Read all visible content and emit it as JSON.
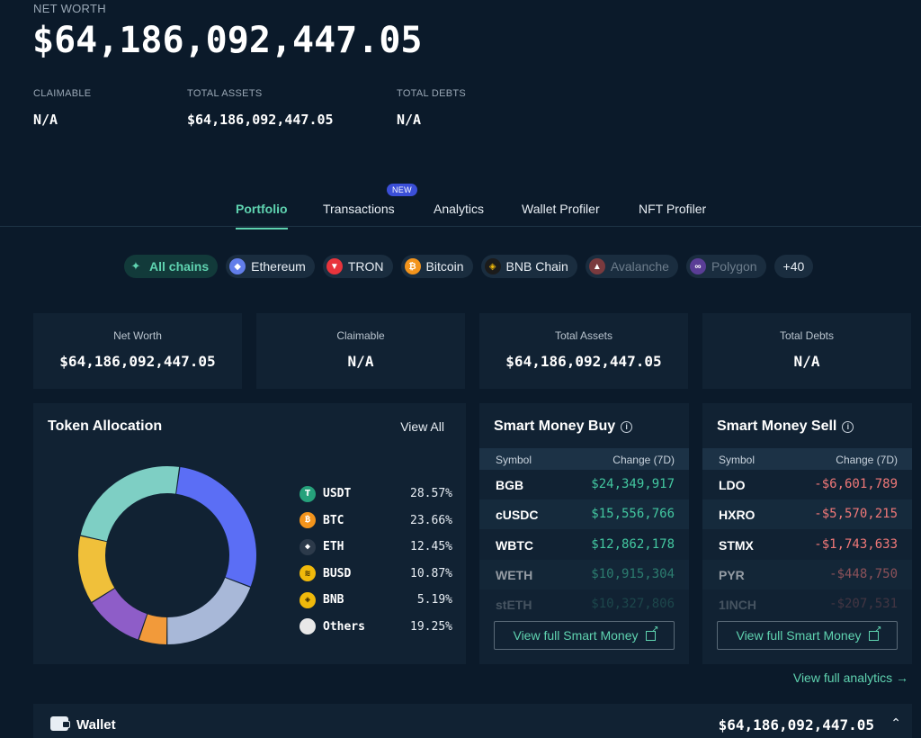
{
  "header": {
    "net_worth_label": "NET WORTH",
    "net_worth_value": "$64,186,092,447.05",
    "stats": [
      {
        "label": "CLAIMABLE",
        "value": "N/A"
      },
      {
        "label": "TOTAL ASSETS",
        "value": "$64,186,092,447.05"
      },
      {
        "label": "TOTAL DEBTS",
        "value": "N/A"
      }
    ]
  },
  "tabs": [
    {
      "label": "Portfolio",
      "active": true
    },
    {
      "label": "Transactions",
      "badge": "NEW"
    },
    {
      "label": "Analytics"
    },
    {
      "label": "Wallet Profiler"
    },
    {
      "label": "NFT Profiler"
    }
  ],
  "chains": [
    {
      "label": "All chains",
      "icon": "all-chains-icon",
      "color": "#5fd3b0"
    },
    {
      "label": "Ethereum",
      "icon": "ethereum-icon",
      "color": "#627eea"
    },
    {
      "label": "TRON",
      "icon": "tron-icon",
      "color": "#e8343c"
    },
    {
      "label": "Bitcoin",
      "icon": "bitcoin-icon",
      "color": "#f3941c"
    },
    {
      "label": "BNB Chain",
      "icon": "bnb-icon",
      "color": "#f0b90b"
    },
    {
      "label": "Avalanche",
      "icon": "avalanche-icon",
      "color": "#e84142"
    },
    {
      "label": "Polygon",
      "icon": "polygon-icon",
      "color": "#8247e5"
    },
    {
      "label": "+40"
    }
  ],
  "summary": [
    {
      "label": "Net Worth",
      "value": "$64,186,092,447.05"
    },
    {
      "label": "Claimable",
      "value": "N/A"
    },
    {
      "label": "Total Assets",
      "value": "$64,186,092,447.05"
    },
    {
      "label": "Total Debts",
      "value": "N/A"
    }
  ],
  "allocation": {
    "title": "Token Allocation",
    "view_all": "View All",
    "tokens": [
      {
        "symbol": "USDT",
        "percent": "28.57%",
        "share": 28.57,
        "color": "#5b6ef5",
        "icon": "tether-icon",
        "icon_color": "#26a17b"
      },
      {
        "symbol": "BTC",
        "percent": "23.66%",
        "share": 23.66,
        "color": "#7ecfc4",
        "icon": "bitcoin-icon",
        "icon_color": "#f3941c"
      },
      {
        "symbol": "ETH",
        "percent": "12.45%",
        "share": 12.45,
        "color": "#f0c03a",
        "icon": "ethereum-icon",
        "icon_color": "#3c4a5a"
      },
      {
        "symbol": "BUSD",
        "percent": "10.87%",
        "share": 10.87,
        "color": "#8e5dc8",
        "icon": "busd-icon",
        "icon_color": "#f0b90b"
      },
      {
        "symbol": "BNB",
        "percent": "5.19%",
        "share": 5.19,
        "color": "#f29a3a",
        "icon": "bnb-icon",
        "icon_color": "#f0b90b"
      },
      {
        "symbol": "Others",
        "percent": "19.25%",
        "share": 19.25,
        "color": "#a8b8d8",
        "icon": "others-icon",
        "icon_color": "#e8e8e8"
      }
    ]
  },
  "smart_buy": {
    "title": "Smart Money Buy",
    "col_symbol": "Symbol",
    "col_change": "Change (7D)",
    "rows": [
      {
        "symbol": "BGB",
        "change": "$24,349,917"
      },
      {
        "symbol": "cUSDC",
        "change": "$15,556,766"
      },
      {
        "symbol": "WBTC",
        "change": "$12,862,178"
      },
      {
        "symbol": "WETH",
        "change": "$10,915,304"
      },
      {
        "symbol": "stETH",
        "change": "$10,327,806"
      }
    ],
    "button": "View full Smart Money"
  },
  "smart_sell": {
    "title": "Smart Money Sell",
    "col_symbol": "Symbol",
    "col_change": "Change (7D)",
    "rows": [
      {
        "symbol": "LDO",
        "change": "-$6,601,789"
      },
      {
        "symbol": "HXRO",
        "change": "-$5,570,215"
      },
      {
        "symbol": "STMX",
        "change": "-$1,743,633"
      },
      {
        "symbol": "PYR",
        "change": "-$448,750"
      },
      {
        "symbol": "1INCH",
        "change": "-$207,531"
      }
    ],
    "button": "View full Smart Money"
  },
  "analytics_link": "View full analytics →",
  "wallet": {
    "label": "Wallet",
    "value": "$64,186,092,447.05",
    "chevron": "⌃"
  }
}
